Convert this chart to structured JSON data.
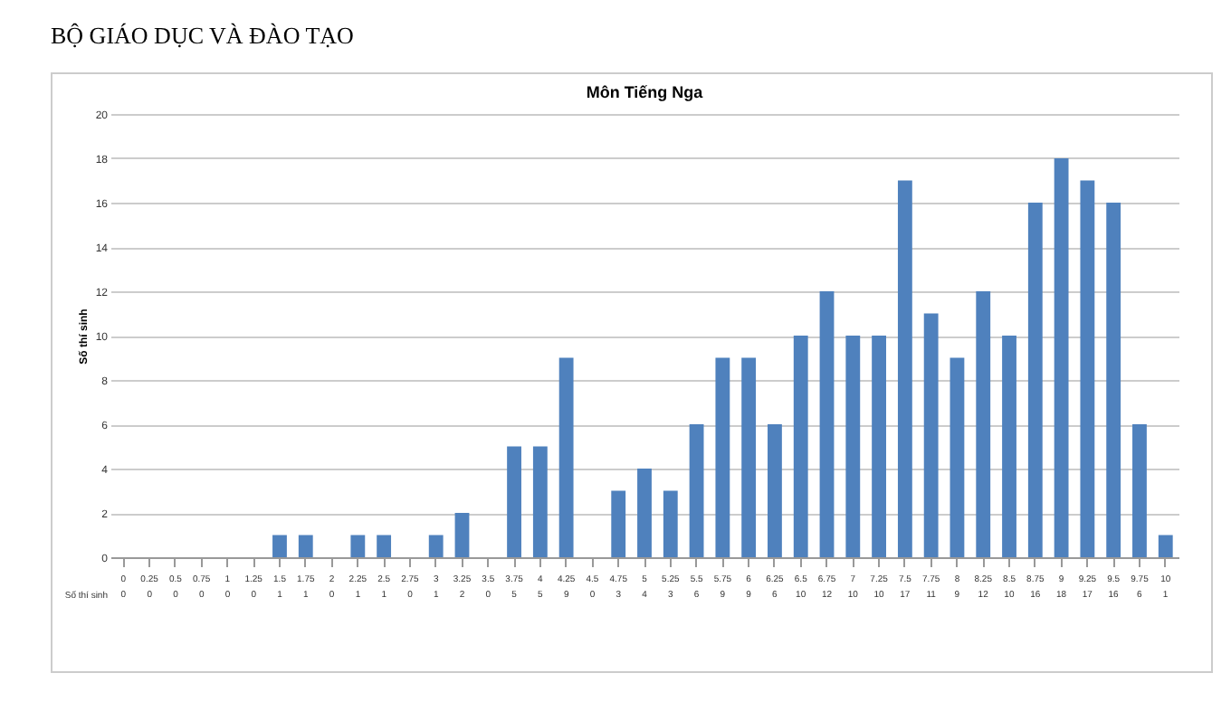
{
  "chart_data": {
    "type": "bar",
    "title": "BỘ GIÁO DỤC VÀ ĐÀO TẠO",
    "subtitle": "Môn Tiếng Nga",
    "ylabel": "Số thí sinh",
    "categories": [
      "0",
      "0.25",
      "0.5",
      "0.75",
      "1",
      "1.25",
      "1.5",
      "1.75",
      "2",
      "2.25",
      "2.5",
      "2.75",
      "3",
      "3.25",
      "3.5",
      "3.75",
      "4",
      "4.25",
      "4.5",
      "4.75",
      "5",
      "5.25",
      "5.5",
      "5.75",
      "6",
      "6.25",
      "6.5",
      "6.75",
      "7",
      "7.25",
      "7.5",
      "7.75",
      "8",
      "8.25",
      "8.5",
      "8.75",
      "9",
      "9.25",
      "9.5",
      "9.75",
      "10"
    ],
    "values": [
      0,
      0,
      0,
      0,
      0,
      0,
      1,
      1,
      0,
      1,
      1,
      0,
      1,
      2,
      0,
      5,
      5,
      9,
      0,
      3,
      4,
      3,
      6,
      9,
      9,
      6,
      10,
      12,
      10,
      10,
      17,
      11,
      9,
      12,
      10,
      16,
      18,
      17,
      16,
      6,
      1
    ],
    "color": "#4f81bd",
    "ylim": [
      0,
      20
    ],
    "yticks": [
      0,
      2,
      4,
      6,
      8,
      10,
      12,
      14,
      16,
      18,
      20
    ],
    "grid": "y",
    "data_labels": true
  }
}
